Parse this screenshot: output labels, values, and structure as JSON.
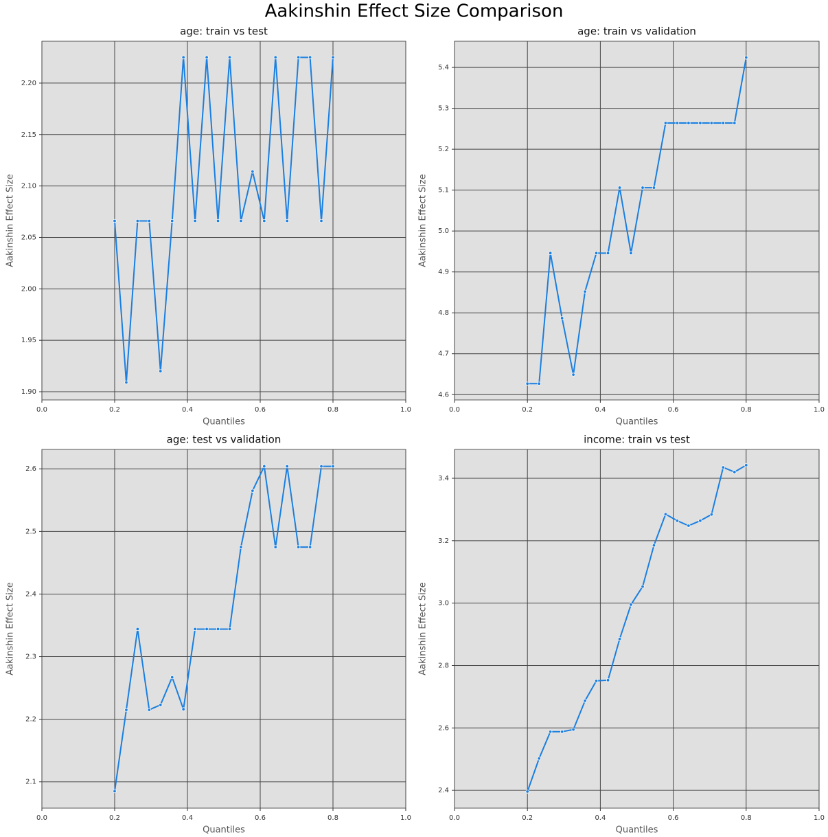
{
  "title": "Aakinshin Effect Size Comparison",
  "chart_data": [
    {
      "type": "line",
      "title": "age: train vs test",
      "xlabel": "Quantiles",
      "ylabel": "Aakinshin Effect Size",
      "x": [
        0.2,
        0.232,
        0.263,
        0.295,
        0.326,
        0.358,
        0.389,
        0.421,
        0.453,
        0.484,
        0.516,
        0.547,
        0.579,
        0.611,
        0.642,
        0.674,
        0.705,
        0.737,
        0.768,
        0.8
      ],
      "values": [
        2.066,
        1.909,
        2.066,
        2.066,
        1.92,
        2.066,
        2.225,
        2.066,
        2.225,
        2.066,
        2.225,
        2.066,
        2.114,
        2.066,
        2.225,
        2.066,
        2.225,
        2.225,
        2.066,
        2.225
      ],
      "color": "#1a7fe0",
      "grid": true,
      "xlim": [
        0,
        1
      ],
      "xticks": [
        {
          "value": 0,
          "label": "0.0"
        },
        0.2,
        0.4,
        0.6,
        0.8,
        {
          "value": 1,
          "label": "1.0"
        }
      ],
      "ylim": [
        1.892,
        2.2407
      ],
      "yticks": [
        {
          "value": 1.9,
          "label": "1.90"
        },
        1.95,
        {
          "value": 2,
          "label": "2.00"
        },
        2.05,
        {
          "value": 2.1,
          "label": "2.10"
        },
        2.15,
        {
          "value": 2.2,
          "label": "2.20"
        }
      ]
    },
    {
      "type": "line",
      "title": "age: train vs validation",
      "xlabel": "Quantiles",
      "ylabel": "Aakinshin Effect Size",
      "x": [
        0.2,
        0.232,
        0.263,
        0.295,
        0.326,
        0.358,
        0.389,
        0.421,
        0.453,
        0.484,
        0.516,
        0.547,
        0.579,
        0.611,
        0.642,
        0.674,
        0.705,
        0.737,
        0.768,
        0.8
      ],
      "values": [
        4.627,
        4.627,
        4.946,
        4.787,
        4.649,
        4.852,
        4.946,
        4.946,
        5.106,
        4.946,
        5.106,
        5.106,
        5.264,
        5.264,
        5.264,
        5.264,
        5.264,
        5.264,
        5.264,
        5.424
      ],
      "color": "#1a7fe0",
      "grid": true,
      "xlim": [
        0,
        1
      ],
      "xticks": [
        {
          "value": 0,
          "label": "0.0"
        },
        0.2,
        0.4,
        0.6,
        0.8,
        {
          "value": 1,
          "label": "1.0"
        }
      ],
      "ylim": [
        4.587,
        5.464
      ],
      "yticks": [
        4.6,
        4.7,
        4.8,
        4.9,
        {
          "value": 5,
          "label": "5.0"
        },
        5.1,
        5.2,
        5.3,
        5.4
      ]
    },
    {
      "type": "line",
      "title": "age: test vs validation",
      "xlabel": "Quantiles",
      "ylabel": "Aakinshin Effect Size",
      "x": [
        0.2,
        0.232,
        0.263,
        0.295,
        0.326,
        0.358,
        0.389,
        0.421,
        0.453,
        0.484,
        0.516,
        0.547,
        0.579,
        0.611,
        0.642,
        0.674,
        0.705,
        0.737,
        0.768,
        0.8
      ],
      "values": [
        2.085,
        2.215,
        2.344,
        2.215,
        2.223,
        2.267,
        2.216,
        2.344,
        2.344,
        2.344,
        2.344,
        2.475,
        2.565,
        2.604,
        2.475,
        2.604,
        2.475,
        2.475,
        2.604,
        2.604
      ],
      "color": "#1a7fe0",
      "grid": true,
      "xlim": [
        0,
        1
      ],
      "xticks": [
        {
          "value": 0,
          "label": "0.0"
        },
        0.2,
        0.4,
        0.6,
        0.8,
        {
          "value": 1,
          "label": "1.0"
        }
      ],
      "ylim": [
        2.058,
        2.631
      ],
      "yticks": [
        2.1,
        2.2,
        2.3,
        2.4,
        2.5,
        2.6
      ]
    },
    {
      "type": "line",
      "title": "income: train vs test",
      "xlabel": "Quantiles",
      "ylabel": "Aakinshin Effect Size",
      "x": [
        0.2,
        0.232,
        0.263,
        0.295,
        0.326,
        0.358,
        0.389,
        0.421,
        0.453,
        0.484,
        0.516,
        0.547,
        0.579,
        0.611,
        0.642,
        0.674,
        0.705,
        0.737,
        0.768,
        0.8
      ],
      "values": [
        2.396,
        2.502,
        2.588,
        2.588,
        2.595,
        2.687,
        2.751,
        2.753,
        2.885,
        2.995,
        3.053,
        3.185,
        3.285,
        3.264,
        3.248,
        3.264,
        3.284,
        3.435,
        3.42,
        3.442
      ],
      "color": "#1a7fe0",
      "grid": true,
      "xlim": [
        0,
        1
      ],
      "xticks": [
        {
          "value": 0,
          "label": "0.0"
        },
        0.2,
        0.4,
        0.6,
        0.8,
        {
          "value": 1,
          "label": "1.0"
        }
      ],
      "ylim": [
        2.343,
        3.4925
      ],
      "yticks": [
        2.4,
        2.6,
        2.8,
        {
          "value": 3,
          "label": "3.0"
        },
        3.2,
        3.4
      ]
    }
  ]
}
